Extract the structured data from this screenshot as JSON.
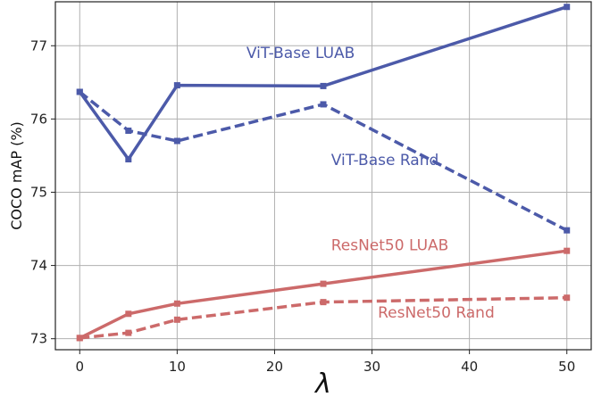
{
  "chart_data": {
    "type": "line",
    "xlabel": "λ",
    "ylabel": "COCO mAP (%)",
    "xlim": [
      -2.5,
      52.5
    ],
    "ylim": [
      72.85,
      77.6
    ],
    "xticks": [
      0,
      10,
      20,
      30,
      40,
      50
    ],
    "yticks": [
      73,
      74,
      75,
      76,
      77
    ],
    "grid": true,
    "legend": "none",
    "series": [
      {
        "name": "ViT-Base LUAB",
        "color": "#4c5aa9",
        "dash": false,
        "x": [
          0,
          5,
          10,
          25,
          50
        ],
        "y": [
          76.37,
          75.45,
          76.46,
          76.45,
          77.53
        ]
      },
      {
        "name": "ViT-Base Rand",
        "color": "#4c5aa9",
        "dash": true,
        "x": [
          0,
          5,
          10,
          25,
          50
        ],
        "y": [
          76.37,
          75.84,
          75.7,
          76.2,
          74.48
        ]
      },
      {
        "name": "ResNet50 LUAB",
        "color": "#cc6a6a",
        "dash": false,
        "x": [
          0,
          5,
          10,
          25,
          50
        ],
        "y": [
          73.01,
          73.34,
          73.48,
          73.75,
          74.2
        ]
      },
      {
        "name": "ResNet50 Rand",
        "color": "#cc6a6a",
        "dash": true,
        "x": [
          0,
          5,
          10,
          25,
          50
        ],
        "y": [
          73.01,
          73.08,
          73.26,
          73.5,
          73.56
        ]
      }
    ],
    "annotations": [
      {
        "text": "ViT-Base LUAB",
        "x": 17.1,
        "y": 76.83,
        "color": "#4c5aa9"
      },
      {
        "text": "ViT-Base Rand",
        "x": 25.8,
        "y": 75.37,
        "color": "#4c5aa9"
      },
      {
        "text": "ResNet50 LUAB",
        "x": 25.8,
        "y": 74.21,
        "color": "#cc6a6a"
      },
      {
        "text": "ResNet50 Rand",
        "x": 30.6,
        "y": 73.29,
        "color": "#cc6a6a"
      }
    ]
  }
}
